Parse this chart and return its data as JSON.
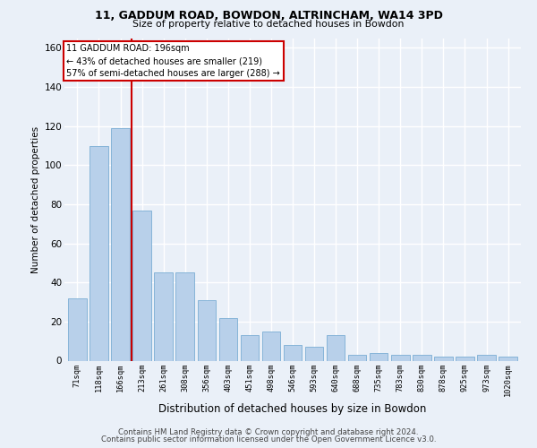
{
  "title1": "11, GADDUM ROAD, BOWDON, ALTRINCHAM, WA14 3PD",
  "title2": "Size of property relative to detached houses in Bowdon",
  "xlabel": "Distribution of detached houses by size in Bowdon",
  "ylabel": "Number of detached properties",
  "categories": [
    "71sqm",
    "118sqm",
    "166sqm",
    "213sqm",
    "261sqm",
    "308sqm",
    "356sqm",
    "403sqm",
    "451sqm",
    "498sqm",
    "546sqm",
    "593sqm",
    "640sqm",
    "688sqm",
    "735sqm",
    "783sqm",
    "830sqm",
    "878sqm",
    "925sqm",
    "973sqm",
    "1020sqm"
  ],
  "values": [
    32,
    110,
    119,
    77,
    45,
    45,
    31,
    22,
    13,
    15,
    8,
    7,
    13,
    3,
    4,
    3,
    3,
    2,
    2,
    3,
    2
  ],
  "bar_color": "#b8d0ea",
  "bar_edge_color": "#7aadd4",
  "vline_x": 2.5,
  "vline_color": "#cc0000",
  "annotation_lines": [
    "11 GADDUM ROAD: 196sqm",
    "← 43% of detached houses are smaller (219)",
    "57% of semi-detached houses are larger (288) →"
  ],
  "annotation_box_color": "#ffffff",
  "annotation_box_edge": "#cc0000",
  "background_color": "#eaf0f8",
  "grid_color": "#ffffff",
  "footer1": "Contains HM Land Registry data © Crown copyright and database right 2024.",
  "footer2": "Contains public sector information licensed under the Open Government Licence v3.0.",
  "ylim": [
    0,
    165
  ],
  "yticks": [
    0,
    20,
    40,
    60,
    80,
    100,
    120,
    140,
    160
  ]
}
